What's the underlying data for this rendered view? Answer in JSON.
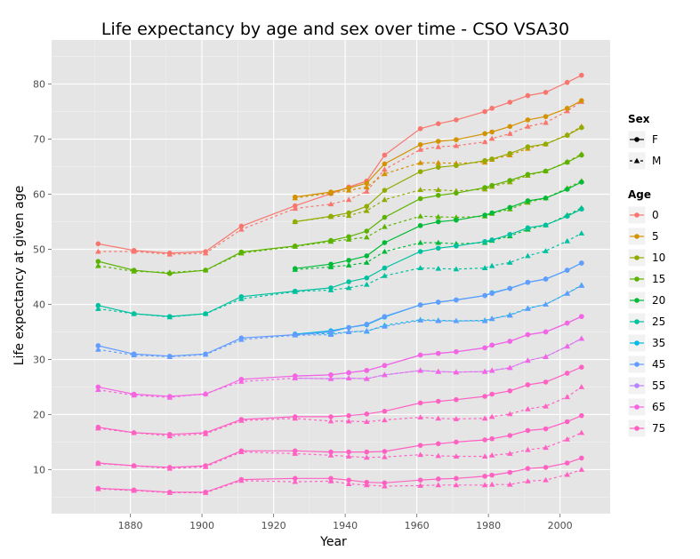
{
  "chart_data": {
    "type": "line",
    "title": "Life expectancy by age and sex over time - CSO VSA30",
    "xlabel": "Year",
    "ylabel": "Life expectancy at given age",
    "xlim": [
      1858,
      2014
    ],
    "ylim": [
      2,
      88
    ],
    "x_ticks": [
      1880,
      1900,
      1920,
      1940,
      1960,
      1980,
      2000
    ],
    "y_ticks": [
      10,
      20,
      30,
      40,
      50,
      60,
      70,
      80
    ],
    "grid": true,
    "legend_position": "right",
    "legend_sex_title": "Sex",
    "legend_sex": [
      {
        "label": "F",
        "line": "solid",
        "marker": "circle"
      },
      {
        "label": "M",
        "line": "dashed",
        "marker": "triangle"
      }
    ],
    "legend_age_title": "Age",
    "legend_age": [
      {
        "label": "0",
        "color": "#F8766D"
      },
      {
        "label": "5",
        "color": "#D39200"
      },
      {
        "label": "10",
        "color": "#93AA00"
      },
      {
        "label": "15",
        "color": "#5BB300"
      },
      {
        "label": "20",
        "color": "#00BA38"
      },
      {
        "label": "25",
        "color": "#00C19F"
      },
      {
        "label": "35",
        "color": "#00B9E3"
      },
      {
        "label": "45",
        "color": "#619CFF"
      },
      {
        "label": "55",
        "color": "#B983FF"
      },
      {
        "label": "65",
        "color": "#F564E3"
      },
      {
        "label": "75",
        "color": "#FF61C3"
      }
    ],
    "series": [
      {
        "age": "0",
        "sex": "F",
        "x": [
          1871,
          1881,
          1891,
          1901,
          1911,
          1926,
          1936,
          1941,
          1946,
          1951,
          1961,
          1966,
          1971,
          1979,
          1981,
          1986,
          1991,
          1996,
          2002,
          2006
        ],
        "y": [
          51,
          49.8,
          49.3,
          49.6,
          54.2,
          57.9,
          60.1,
          61.3,
          62.4,
          67.1,
          71.9,
          72.8,
          73.5,
          75.0,
          75.6,
          76.7,
          77.9,
          78.5,
          80.3,
          81.6
        ]
      },
      {
        "age": "0",
        "sex": "M",
        "x": [
          1871,
          1881,
          1891,
          1901,
          1911,
          1926,
          1936,
          1941,
          1946,
          1951,
          1961,
          1966,
          1971,
          1979,
          1981,
          1986,
          1991,
          1996,
          2002,
          2006
        ],
        "y": [
          49.6,
          49.6,
          49.1,
          49.3,
          53.6,
          57.4,
          58.2,
          59.0,
          60.5,
          64.5,
          68.1,
          68.6,
          68.8,
          69.5,
          70.1,
          71.0,
          72.3,
          73.0,
          75.1,
          76.8
        ]
      },
      {
        "age": "5",
        "sex": "F",
        "x": [
          1926,
          1936,
          1941,
          1946,
          1951,
          1961,
          1966,
          1971,
          1979,
          1981,
          1986,
          1991,
          1996,
          2002,
          2006
        ],
        "y": [
          59.5,
          60.4,
          61.1,
          62.0,
          65.5,
          69.0,
          69.6,
          69.9,
          71.0,
          71.3,
          72.3,
          73.5,
          74.1,
          75.6,
          77.0
        ]
      },
      {
        "age": "5",
        "sex": "M",
        "x": [
          1926,
          1936,
          1941,
          1946,
          1951,
          1961,
          1966,
          1971,
          1979,
          1981,
          1986,
          1991,
          1996,
          2002,
          2006
        ],
        "y": [
          59.3,
          60.2,
          60.7,
          61.3,
          63.7,
          65.7,
          65.7,
          65.6,
          65.8,
          66.3,
          67.1,
          68.3,
          69.1,
          70.8,
          72.3
        ]
      },
      {
        "age": "10",
        "sex": "F",
        "x": [
          1926,
          1936,
          1941,
          1946,
          1951,
          1961,
          1966,
          1971,
          1979,
          1981,
          1986,
          1991,
          1996,
          2002,
          2006
        ],
        "y": [
          55.0,
          56.0,
          56.6,
          57.8,
          60.7,
          64.1,
          64.9,
          65.2,
          66.1,
          66.4,
          67.4,
          68.6,
          69.1,
          70.7,
          72.1
        ]
      },
      {
        "age": "10",
        "sex": "M",
        "x": [
          1926,
          1936,
          1941,
          1946,
          1951,
          1961,
          1966,
          1971,
          1979,
          1981,
          1986,
          1991,
          1996,
          2002,
          2006
        ],
        "y": [
          55.0,
          55.9,
          56.1,
          57.0,
          59.0,
          60.8,
          60.8,
          60.6,
          60.9,
          61.4,
          62.2,
          63.4,
          64.2,
          65.9,
          67.3
        ]
      },
      {
        "age": "15",
        "sex": "F",
        "x": [
          1871,
          1881,
          1891,
          1901,
          1911,
          1926,
          1936,
          1941,
          1946,
          1951,
          1961,
          1966,
          1971,
          1979,
          1981,
          1986,
          1991,
          1996,
          2002,
          2006
        ],
        "y": [
          47.8,
          46.2,
          45.6,
          46.2,
          49.5,
          50.6,
          51.6,
          52.3,
          53.3,
          55.8,
          59.2,
          59.8,
          60.2,
          61.2,
          61.6,
          62.5,
          63.6,
          64.2,
          65.8,
          67.1
        ]
      },
      {
        "age": "15",
        "sex": "M",
        "x": [
          1871,
          1881,
          1891,
          1901,
          1911,
          1926,
          1936,
          1941,
          1946,
          1951,
          1961,
          1966,
          1971,
          1979,
          1981,
          1986,
          1991,
          1996,
          2002,
          2006
        ],
        "y": [
          47.0,
          46.0,
          45.8,
          46.2,
          49.3,
          50.5,
          51.4,
          51.8,
          52.2,
          54.1,
          56.0,
          55.9,
          55.8,
          56.0,
          56.5,
          57.3,
          58.5,
          59.3,
          61.1,
          62.4
        ]
      },
      {
        "age": "20",
        "sex": "F",
        "x": [
          1926,
          1936,
          1941,
          1946,
          1951,
          1961,
          1966,
          1971,
          1979,
          1981,
          1986,
          1991,
          1996,
          2002,
          2006
        ],
        "y": [
          46.5,
          47.3,
          48.0,
          48.8,
          51.2,
          54.3,
          55.0,
          55.3,
          56.2,
          56.6,
          57.6,
          58.8,
          59.3,
          60.9,
          62.2
        ]
      },
      {
        "age": "20",
        "sex": "M",
        "x": [
          1926,
          1936,
          1941,
          1946,
          1951,
          1961,
          1966,
          1971,
          1979,
          1981,
          1986,
          1991,
          1996,
          2002,
          2006
        ],
        "y": [
          46.3,
          46.8,
          47.1,
          47.6,
          49.6,
          51.2,
          51.2,
          51.0,
          51.2,
          51.6,
          52.4,
          53.6,
          54.4,
          56.2,
          57.5
        ]
      },
      {
        "age": "25",
        "sex": "F",
        "x": [
          1871,
          1881,
          1891,
          1901,
          1911,
          1926,
          1936,
          1941,
          1946,
          1951,
          1961,
          1966,
          1971,
          1979,
          1981,
          1986,
          1991,
          1996,
          2002,
          2006
        ],
        "y": [
          39.8,
          38.3,
          37.8,
          38.3,
          41.4,
          42.4,
          43.0,
          44.1,
          44.8,
          46.6,
          49.6,
          50.2,
          50.6,
          51.4,
          51.7,
          52.7,
          53.9,
          54.4,
          56.0,
          57.3
        ]
      },
      {
        "age": "25",
        "sex": "M",
        "x": [
          1871,
          1881,
          1891,
          1901,
          1911,
          1926,
          1936,
          1941,
          1946,
          1951,
          1961,
          1966,
          1971,
          1979,
          1981,
          1986,
          1991,
          1996,
          2002,
          2006
        ],
        "y": [
          39.2,
          38.3,
          37.7,
          38.3,
          41.0,
          42.3,
          42.6,
          43.0,
          43.6,
          45.2,
          46.6,
          46.5,
          46.4,
          46.6,
          47.0,
          47.6,
          48.8,
          49.7,
          51.5,
          52.9
        ]
      },
      {
        "age": "35",
        "sex": "F",
        "x": [
          1926,
          1936,
          1941,
          1946,
          1951,
          1961,
          1966,
          1971,
          1979,
          1981,
          1986,
          1991,
          1996,
          2002,
          2006
        ],
        "y": [
          34.6,
          35.2,
          35.8,
          36.3,
          37.7,
          39.9,
          40.4,
          40.8,
          41.6,
          42.1,
          42.9,
          44.0,
          44.6,
          46.2,
          47.5
        ]
      },
      {
        "age": "35",
        "sex": "M",
        "x": [
          1926,
          1936,
          1941,
          1946,
          1951,
          1961,
          1966,
          1971,
          1979,
          1981,
          1986,
          1991,
          1996,
          2002,
          2006
        ],
        "y": [
          34.6,
          34.7,
          35.0,
          35.1,
          36.2,
          37.2,
          37.1,
          37.0,
          37.1,
          37.4,
          38.1,
          39.3,
          40.0,
          42.0,
          43.5
        ]
      },
      {
        "age": "45",
        "sex": "F",
        "x": [
          1871,
          1881,
          1891,
          1901,
          1911,
          1926,
          1936,
          1941,
          1946,
          1951,
          1961,
          1966,
          1971,
          1979,
          1981,
          1986,
          1991,
          1996,
          2002,
          2006
        ],
        "y": [
          32.5,
          31.0,
          30.6,
          31.0,
          33.9,
          34.5,
          35.0,
          35.8,
          36.4,
          37.8,
          39.9,
          40.4,
          40.8,
          41.6,
          42.0,
          42.9,
          44.0,
          44.6,
          46.2,
          47.5
        ]
      },
      {
        "age": "45",
        "sex": "M",
        "x": [
          1871,
          1881,
          1891,
          1901,
          1911,
          1926,
          1936,
          1941,
          1946,
          1951,
          1961,
          1966,
          1971,
          1979,
          1981,
          1986,
          1991,
          1996,
          2002,
          2006
        ],
        "y": [
          31.8,
          30.8,
          30.5,
          30.9,
          33.6,
          34.4,
          34.5,
          35.0,
          35.2,
          36.0,
          37.1,
          37.0,
          37.0,
          37.0,
          37.4,
          38.0,
          39.2,
          40.0,
          42.0,
          43.4
        ]
      },
      {
        "age": "55",
        "sex": "F",
        "x": [
          1926,
          1936,
          1941,
          1946,
          1951,
          1961,
          1966,
          1971,
          1979,
          1981,
          1986,
          1991,
          1996,
          2002,
          2006
        ],
        "y": [
          27.0,
          27.2,
          27.6,
          28.0,
          28.9,
          30.8,
          31.1,
          31.4,
          32.1,
          32.6,
          33.3,
          34.5,
          35.0,
          36.6,
          37.8
        ]
      },
      {
        "age": "55",
        "sex": "M",
        "x": [
          1926,
          1936,
          1941,
          1946,
          1951,
          1961,
          1966,
          1971,
          1979,
          1981,
          1986,
          1991,
          1996,
          2002,
          2006
        ],
        "y": [
          26.6,
          26.5,
          26.6,
          26.5,
          27.2,
          28.0,
          27.8,
          27.7,
          27.8,
          28.0,
          28.5,
          29.8,
          30.5,
          32.4,
          33.8
        ]
      },
      {
        "age": "65",
        "sex": "F",
        "x": [
          1871,
          1881,
          1891,
          1901,
          1911,
          1926,
          1936,
          1941,
          1946,
          1951,
          1961,
          1966,
          1971,
          1979,
          1981,
          1986,
          1991,
          1996,
          2002,
          2006
        ],
        "y": [
          25.0,
          23.7,
          23.3,
          23.7,
          26.4,
          27.0,
          27.2,
          27.6,
          28.0,
          28.9,
          30.8,
          31.1,
          31.4,
          32.1,
          32.6,
          33.3,
          34.5,
          35.0,
          36.6,
          37.8
        ]
      },
      {
        "age": "65",
        "sex": "M",
        "x": [
          1871,
          1881,
          1891,
          1901,
          1911,
          1926,
          1936,
          1941,
          1946,
          1951,
          1961,
          1966,
          1971,
          1979,
          1981,
          1986,
          1991,
          1996,
          2002,
          2006
        ],
        "y": [
          24.5,
          23.5,
          23.1,
          23.8,
          26.0,
          26.6,
          26.5,
          26.6,
          26.5,
          27.2,
          28.0,
          27.8,
          27.7,
          27.8,
          28.0,
          28.5,
          29.8,
          30.5,
          32.4,
          33.8
        ]
      },
      {
        "age": "75",
        "sex": "F",
        "x": [
          1871,
          1881,
          1891,
          1901,
          1911,
          1926,
          1936,
          1941,
          1946,
          1951,
          1961,
          1966,
          1971,
          1979,
          1981,
          1986,
          1991,
          1996,
          2002,
          2006
        ],
        "y": [
          17.7,
          16.7,
          16.4,
          16.7,
          19.1,
          19.6,
          19.6,
          19.8,
          20.1,
          20.6,
          22.1,
          22.4,
          22.7,
          23.3,
          23.7,
          24.3,
          25.4,
          25.9,
          27.5,
          28.6
        ]
      },
      {
        "age": "75",
        "sex": "M",
        "x": [
          1871,
          1881,
          1891,
          1901,
          1911,
          1926,
          1936,
          1941,
          1946,
          1951,
          1961,
          1966,
          1971,
          1979,
          1981,
          1986,
          1991,
          1996,
          2002,
          2006
        ],
        "y": [
          17.5,
          16.7,
          16.1,
          16.5,
          18.9,
          19.3,
          18.8,
          18.8,
          18.7,
          19.0,
          19.5,
          19.3,
          19.2,
          19.3,
          19.6,
          20.1,
          21.0,
          21.5,
          23.2,
          25.0
        ]
      },
      {
        "age": "75",
        "sex": "F",
        "x": [
          1871,
          1881,
          1891,
          1901,
          1911,
          1926,
          1936,
          1941,
          1946,
          1951,
          1961,
          1966,
          1971,
          1979,
          1981,
          1986,
          1991,
          1996,
          2002,
          2006
        ],
        "y": [
          11.2,
          10.7,
          10.4,
          10.7,
          13.4,
          13.4,
          13.2,
          13.2,
          13.2,
          13.3,
          14.4,
          14.7,
          15.0,
          15.4,
          15.6,
          16.2,
          17.1,
          17.4,
          18.7,
          19.8
        ]
      },
      {
        "age": "75",
        "sex": "M",
        "x": [
          1871,
          1881,
          1891,
          1901,
          1911,
          1926,
          1936,
          1941,
          1946,
          1951,
          1961,
          1966,
          1971,
          1979,
          1981,
          1986,
          1991,
          1996,
          2002,
          2006
        ],
        "y": [
          11.1,
          10.7,
          10.2,
          10.5,
          13.2,
          12.9,
          12.6,
          12.4,
          12.2,
          12.3,
          12.7,
          12.5,
          12.4,
          12.4,
          12.6,
          12.9,
          13.6,
          14.0,
          15.5,
          16.7
        ]
      },
      {
        "age": "75",
        "sex": "F",
        "x": [
          1871,
          1881,
          1891,
          1901,
          1911,
          1926,
          1936,
          1941,
          1946,
          1951,
          1961,
          1966,
          1971,
          1979,
          1981,
          1986,
          1991,
          1996,
          2002,
          2006
        ],
        "y": [
          6.6,
          6.3,
          5.9,
          5.9,
          8.2,
          8.4,
          8.4,
          8.1,
          7.7,
          7.6,
          8.1,
          8.3,
          8.4,
          8.8,
          9.0,
          9.5,
          10.2,
          10.4,
          11.2,
          12.1
        ]
      },
      {
        "age": "75",
        "sex": "M",
        "x": [
          1871,
          1881,
          1891,
          1901,
          1911,
          1926,
          1936,
          1941,
          1946,
          1951,
          1961,
          1966,
          1971,
          1979,
          1981,
          1986,
          1991,
          1996,
          2002,
          2006
        ],
        "y": [
          6.5,
          6.2,
          5.8,
          5.8,
          8.0,
          7.8,
          7.9,
          7.4,
          7.2,
          7.0,
          7.1,
          7.2,
          7.2,
          7.2,
          7.3,
          7.3,
          7.9,
          8.1,
          9.1,
          10.0
        ]
      }
    ]
  }
}
